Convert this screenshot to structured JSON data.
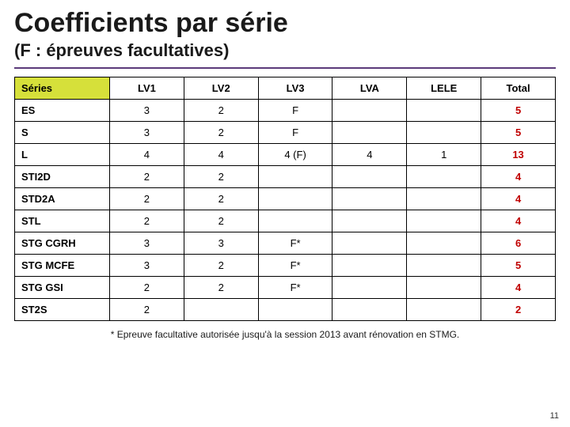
{
  "title": "Coefficients par série",
  "subtitle": "(F : épreuves facultatives)",
  "table": {
    "type": "table",
    "header_bg": "#d6e03a",
    "border_color": "#000000",
    "total_color": "#c00000",
    "columns": [
      "Séries",
      "LV1",
      "LV2",
      "LV3",
      "LVA",
      "LELE",
      "Total"
    ],
    "rows": [
      {
        "series": "ES",
        "lv1": "3",
        "lv2": "2",
        "lv3": "F",
        "lva": "",
        "lele": "",
        "total": "5"
      },
      {
        "series": "S",
        "lv1": "3",
        "lv2": "2",
        "lv3": "F",
        "lva": "",
        "lele": "",
        "total": "5"
      },
      {
        "series": "L",
        "lv1": "4",
        "lv2": "4",
        "lv3": "4 (F)",
        "lva": "4",
        "lele": "1",
        "total": "13"
      },
      {
        "series": "STI2D",
        "lv1": "2",
        "lv2": "2",
        "lv3": "",
        "lva": "",
        "lele": "",
        "total": "4"
      },
      {
        "series": "STD2A",
        "lv1": "2",
        "lv2": "2",
        "lv3": "",
        "lva": "",
        "lele": "",
        "total": "4"
      },
      {
        "series": "STL",
        "lv1": "2",
        "lv2": "2",
        "lv3": "",
        "lva": "",
        "lele": "",
        "total": "4"
      },
      {
        "series": "STG CGRH",
        "lv1": "3",
        "lv2": "3",
        "lv3": "F*",
        "lva": "",
        "lele": "",
        "total": "6"
      },
      {
        "series": "STG MCFE",
        "lv1": "3",
        "lv2": "2",
        "lv3": "F*",
        "lva": "",
        "lele": "",
        "total": "5"
      },
      {
        "series": "STG GSI",
        "lv1": "2",
        "lv2": "2",
        "lv3": "F*",
        "lva": "",
        "lele": "",
        "total": "4"
      },
      {
        "series": "ST2S",
        "lv1": "2",
        "lv2": "",
        "lv3": "",
        "lva": "",
        "lele": "",
        "total": "2"
      }
    ]
  },
  "footnote": "* Epreuve facultative autorisée jusqu'à la session 2013 avant rénovation en STMG.",
  "page_number": "11"
}
